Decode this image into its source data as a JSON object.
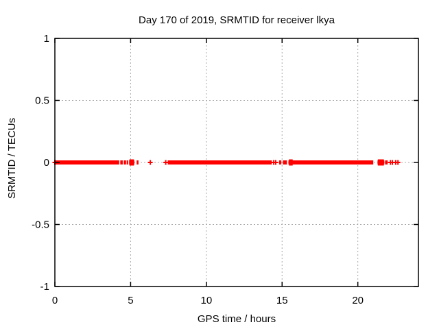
{
  "chart_data": {
    "type": "scatter",
    "title": "Day 170 of 2019, SRMTID for receiver lkya",
    "xlabel": "GPS time / hours",
    "ylabel": "SRMTID / TECUs",
    "xlim": [
      0,
      24
    ],
    "ylim": [
      -1,
      1
    ],
    "x_ticks": [
      0,
      5,
      10,
      15,
      20
    ],
    "x_tick_labels": [
      "0",
      "5",
      "10",
      "15",
      "20"
    ],
    "y_ticks": [
      -1,
      -0.5,
      0,
      0.5,
      1
    ],
    "y_tick_labels": [
      "-1",
      "-0.5",
      "0",
      "0.5",
      "1"
    ],
    "grid": true,
    "legend": "none",
    "marker": {
      "shape": "plus",
      "size": 7,
      "color": "#ff0000"
    },
    "colors": {
      "data": "#ff0000",
      "grid": "#a8a8a8",
      "axis": "#000000",
      "background": "#ffffff",
      "text": "#000000"
    },
    "series": [
      {
        "name": "SRMTID",
        "y_value": 0,
        "band_segments_hours": [
          [
            0.0,
            4.25
          ],
          [
            4.32,
            4.48
          ],
          [
            4.55,
            4.7
          ],
          [
            4.74,
            4.84
          ],
          [
            4.9,
            5.25
          ],
          [
            5.4,
            5.52
          ],
          [
            7.45,
            14.32
          ],
          [
            14.8,
            14.95
          ],
          [
            15.05,
            15.32
          ],
          [
            15.42,
            21.02
          ],
          [
            21.3,
            21.75
          ],
          [
            21.8,
            21.97
          ]
        ],
        "bold_segments_hours": [
          [
            4.92,
            5.22
          ],
          [
            15.45,
            15.7
          ],
          [
            21.32,
            21.72
          ]
        ],
        "isolated_points_hours": [
          0.0,
          6.3,
          7.32,
          14.45,
          14.58,
          22.15,
          22.28,
          22.5,
          22.65
        ]
      }
    ]
  }
}
